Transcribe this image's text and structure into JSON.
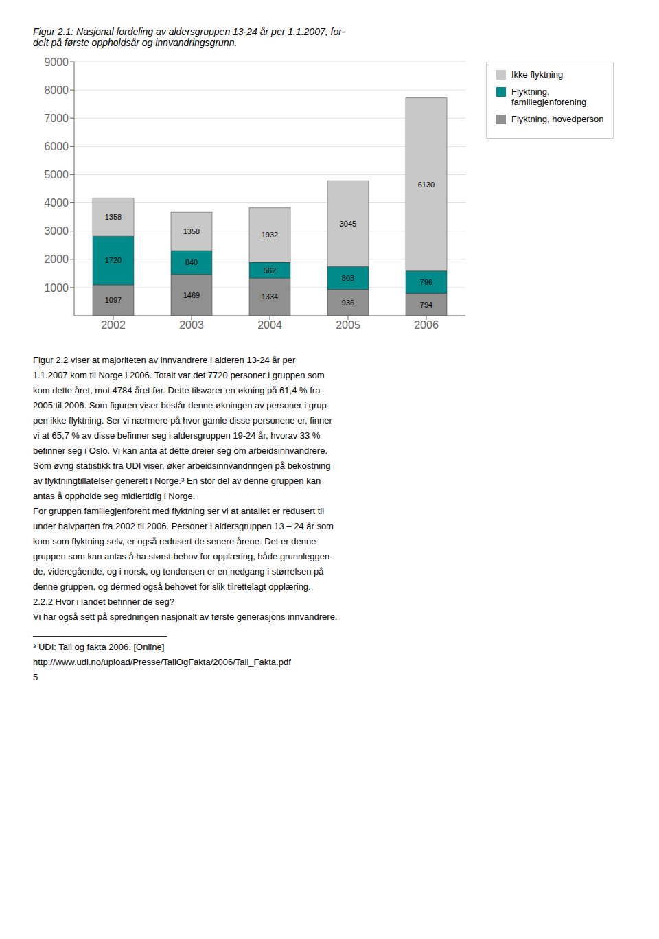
{
  "chart_data": {
    "type": "bar",
    "title": "Figur 2.1: Nasjonal fordeling av aldersgruppen 13-24 år per 1.1.2007, for-\ndelt på første oppholdsår og innvandringsgrunn.",
    "categories": [
      "2002",
      "2003",
      "2004",
      "2005",
      "2006"
    ],
    "series": [
      {
        "name": "Flyktning, hovedperson",
        "color": "#909090",
        "values": [
          1097,
          1469,
          1334,
          936,
          794
        ]
      },
      {
        "name": "Flyktning,\nfamiliegjenforening",
        "color": "#008B8B",
        "values": [
          1720,
          840,
          562,
          803,
          796
        ]
      },
      {
        "name": "Ikke flyktning",
        "color": "#c8c8c8",
        "values": [
          1358,
          1358,
          1932,
          3045,
          6130
        ]
      }
    ],
    "stacked": true,
    "data_labels": true,
    "ylim": [
      0,
      9000
    ],
    "yticks": [
      1000,
      2000,
      3000,
      4000,
      5000,
      6000,
      7000,
      8000,
      9000
    ],
    "grid": true,
    "legend": "right",
    "annotations": [
      "Figur 2.2 viser at majoriteten av innvandrere i alderen 13-24 år per",
      "1.1.2007 kom til Norge i 2006. Totalt var det 7720 personer i gruppen som",
      "kom dette året, mot 4784 året før. Dette tilsvarer en økning på 61,4 % fra",
      "2005 til 2006. Som figuren viser består denne økningen av personer i grup-",
      "pen ikke flyktning. Ser vi nærmere på hvor gamle disse personene er, finner",
      "vi at 65,7 % av disse befinner seg i aldersgruppen 19-24 år, hvorav 33 %",
      "befinner seg i Oslo. Vi kan anta at dette dreier seg om arbeidsinnvandrere.",
      "Som øvrig statistikk fra UDI viser, øker arbeidsinnvandringen på bekostning",
      "av flyktningtillatelser generelt i Norge.³ En stor del av denne gruppen kan",
      "antas å oppholde seg midlertidig i Norge.",
      "For gruppen familiegjenforent med flyktning ser vi at antallet er redusert til",
      "under halvparten fra 2002 til 2006. Personer i aldersgruppen 13 – 24 år som",
      "kom som flyktning selv, er også redusert de senere årene. Det er denne",
      "gruppen som kan antas å ha størst behov for opplæring, både grunnleggen-",
      "de, videregående, og i norsk, og tendensen er en nedgang i størrelsen på",
      "denne gruppen, og dermed også behovet for slik tilrettelagt opplæring.",
      "2.2.2 Hvor i landet befinner de seg?",
      "Vi har også sett på spredningen nasjonalt av første generasjons innvandrere.",
      "___________________________",
      "³ UDI: Tall og fakta 2006. [Online]",
      "http://www.udi.no/upload/Presse/TallOgFakta/2006/Tall_Fakta.pdf",
      "5"
    ]
  }
}
